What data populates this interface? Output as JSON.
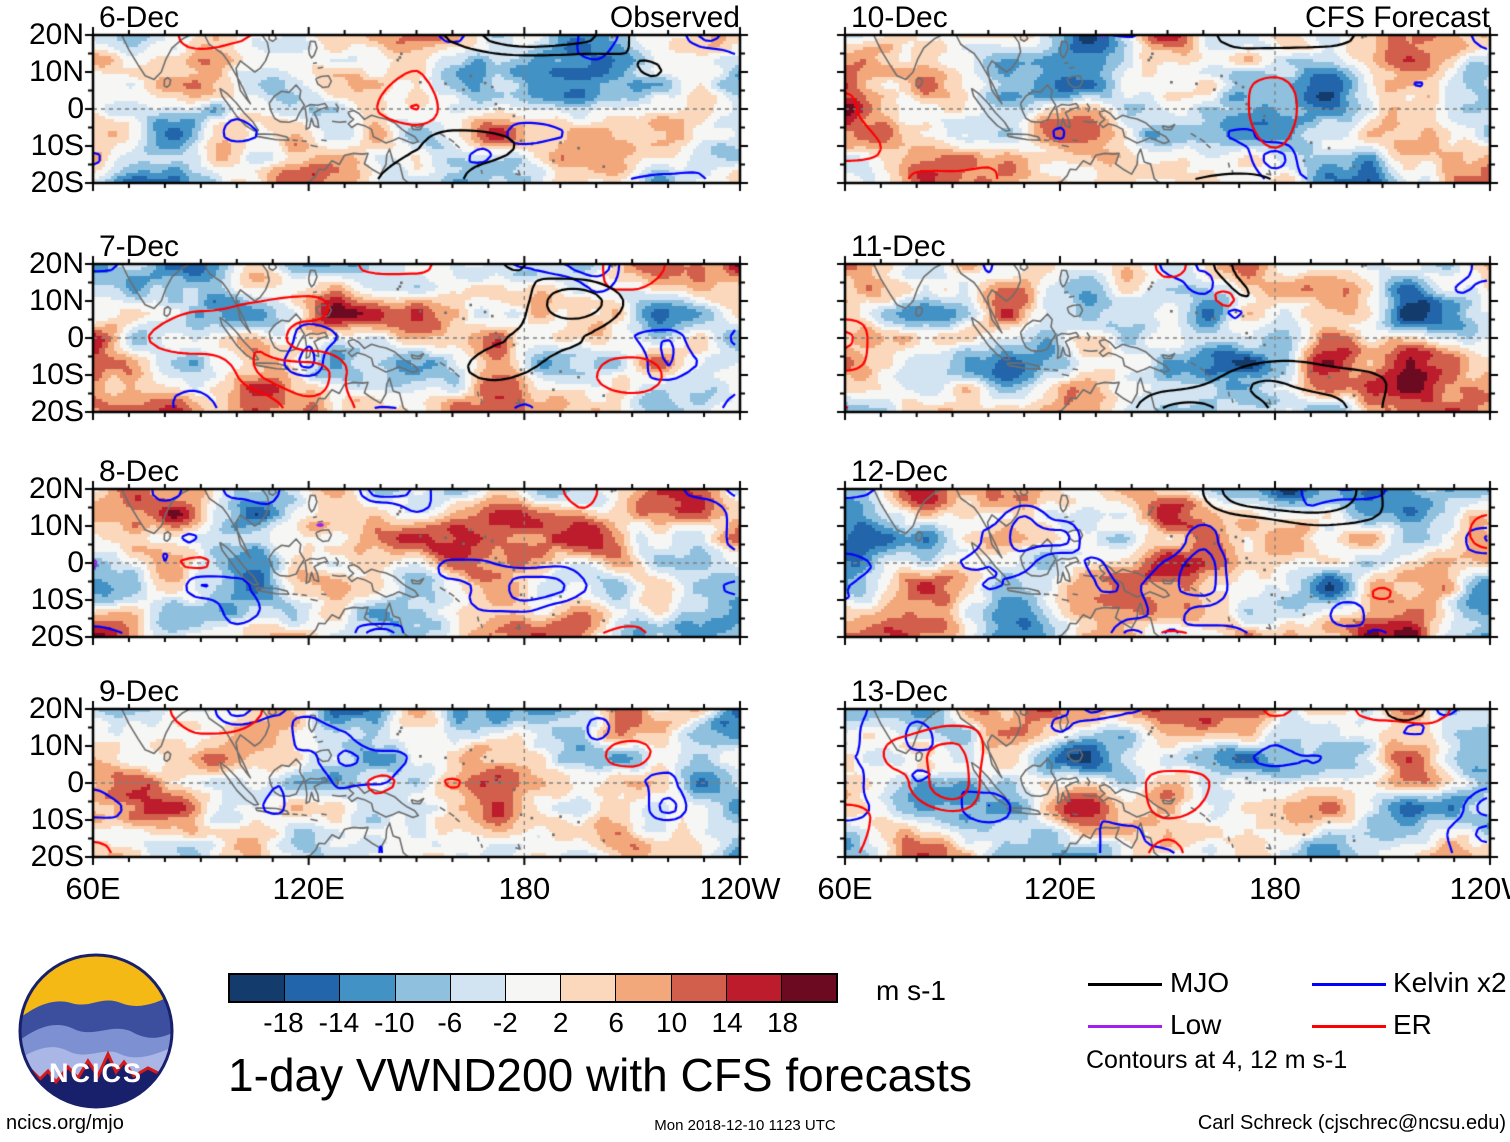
{
  "page": {
    "title": "1-day VWND200 with CFS forecasts",
    "footer": {
      "left": "ncics.org/mjo",
      "center": "Mon 2018-12-10 1123 UTC",
      "right": "Carl Schreck (cjschrec@ncsu.edu)"
    },
    "logo_text": "NCICS"
  },
  "chart_data": {
    "type": "heatmap",
    "title": "1-day VWND200 with CFS forecasts",
    "variable": "VWND200",
    "units": "m s-1",
    "columns": [
      {
        "header": "Observed",
        "panel_dates": [
          "6-Dec",
          "7-Dec",
          "8-Dec",
          "9-Dec"
        ]
      },
      {
        "header": "CFS Forecast",
        "panel_dates": [
          "10-Dec",
          "11-Dec",
          "12-Dec",
          "13-Dec"
        ]
      }
    ],
    "panels": [
      {
        "date": "6-Dec",
        "column": 0,
        "seed": 11
      },
      {
        "date": "7-Dec",
        "column": 0,
        "seed": 23
      },
      {
        "date": "8-Dec",
        "column": 0,
        "seed": 37
      },
      {
        "date": "9-Dec",
        "column": 0,
        "seed": 49
      },
      {
        "date": "10-Dec",
        "column": 1,
        "seed": 58
      },
      {
        "date": "11-Dec",
        "column": 1,
        "seed": 67
      },
      {
        "date": "12-Dec",
        "column": 1,
        "seed": 79
      },
      {
        "date": "13-Dec",
        "column": 1,
        "seed": 94
      }
    ],
    "x_axis": {
      "tick_labels": [
        "60E",
        "120E",
        "180",
        "120W"
      ],
      "tick_degrees": [
        60,
        120,
        180,
        240
      ],
      "range_deg": [
        60,
        240
      ]
    },
    "y_axis": {
      "tick_labels": [
        "20N",
        "10N",
        "0",
        "10S",
        "20S"
      ],
      "tick_degrees": [
        20,
        10,
        0,
        -10,
        -20
      ],
      "range_deg": [
        20,
        -20
      ]
    },
    "colorbar": {
      "levels": [
        -18,
        -14,
        -10,
        -6,
        -2,
        2,
        6,
        10,
        14,
        18
      ],
      "colors": [
        "#133b6b",
        "#2265ab",
        "#4392c6",
        "#8fc1df",
        "#d2e4f2",
        "#f6f6f4",
        "#fbd8bb",
        "#f3a87c",
        "#d15f4c",
        "#bc1c2c",
        "#6b0a21"
      ],
      "units_label": "m s-1"
    },
    "legend": {
      "entries": [
        {
          "label": "MJO",
          "color": "#000000"
        },
        {
          "label": "Low",
          "color": "#a020f0"
        },
        {
          "label": "Kelvin x2",
          "color": "#0000ff"
        },
        {
          "label": "ER",
          "color": "#ff0000"
        }
      ],
      "note": "Contours at 4, 12 m s-1"
    },
    "map": {
      "coast_color": "#6e6e6e",
      "reference_lines": {
        "equator": "0",
        "dateline": "180"
      }
    }
  }
}
